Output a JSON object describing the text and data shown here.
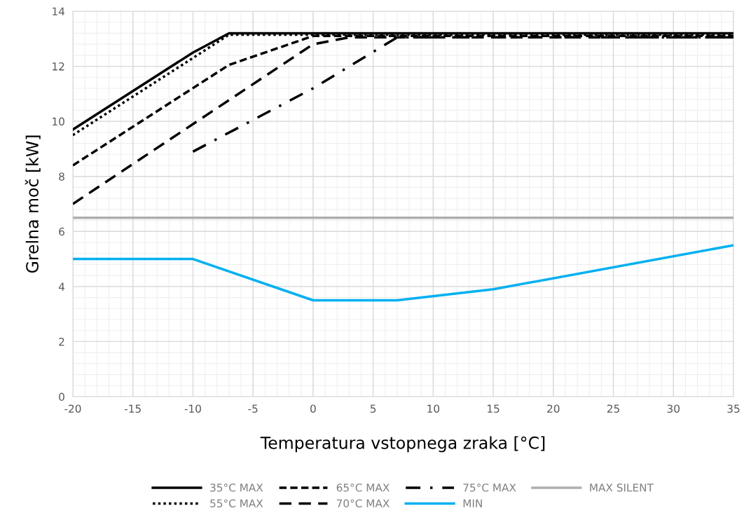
{
  "chart_data": {
    "type": "line",
    "xlabel": "Temperatura vstopnega zraka [°C]",
    "ylabel": "Grelna moč [kW]",
    "xlim": [
      -20,
      35
    ],
    "xticks": [
      -20,
      -15,
      -10,
      -5,
      0,
      5,
      10,
      15,
      20,
      25,
      30,
      35
    ],
    "ylim": [
      0,
      14
    ],
    "yticks": [
      0,
      2,
      4,
      6,
      8,
      10,
      12,
      14
    ],
    "grid": true,
    "legend": "bottom",
    "series": [
      {
        "name": "35°C MAX",
        "color": "#000000",
        "line_style": "solid",
        "x": [
          -20,
          -10,
          -7,
          35
        ],
        "values": [
          9.7,
          12.5,
          13.2,
          13.2
        ]
      },
      {
        "name": "55°C MAX",
        "color": "#000000",
        "line_style": "dotted",
        "x": [
          -20,
          -10,
          -7,
          35
        ],
        "values": [
          9.5,
          12.3,
          13.15,
          13.15
        ]
      },
      {
        "name": "65°C MAX",
        "color": "#000000",
        "line_style": "dashed",
        "x": [
          -20,
          -7,
          0,
          35
        ],
        "values": [
          8.4,
          12.05,
          13.1,
          13.1
        ]
      },
      {
        "name": "70°C MAX",
        "color": "#000000",
        "line_style": "longdash",
        "x": [
          -20,
          0,
          3,
          35
        ],
        "values": [
          7.0,
          12.8,
          13.05,
          13.05
        ]
      },
      {
        "name": "75°C MAX",
        "color": "#000000",
        "line_style": "dashdot",
        "x": [
          -10,
          0,
          7,
          35
        ],
        "values": [
          8.9,
          11.2,
          13.05,
          13.05
        ]
      },
      {
        "name": "MIN",
        "color": "#00b0f0",
        "line_style": "solid",
        "x": [
          -20,
          -10,
          0,
          7,
          15,
          35
        ],
        "values": [
          5.0,
          5.0,
          3.5,
          3.5,
          3.9,
          5.5
        ]
      },
      {
        "name": "MAX SILENT",
        "color": "#afafaf",
        "line_style": "solid",
        "x": [
          -20,
          35
        ],
        "values": [
          6.5,
          6.5
        ]
      }
    ]
  }
}
